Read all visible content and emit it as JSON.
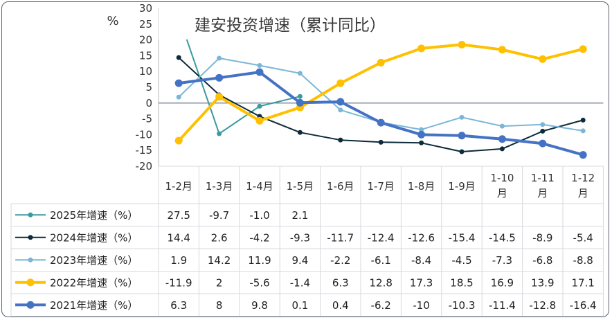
{
  "chart_data": {
    "type": "line",
    "title": "建安投资增速（累计同比）",
    "ylabel": "%",
    "ylim": [
      -20,
      30
    ],
    "yticks": [
      30,
      25,
      20,
      15,
      10,
      5,
      0,
      -5,
      -10,
      -15,
      -20
    ],
    "ytick_labels": [
      "30",
      "25",
      "20",
      "15",
      "10",
      "5",
      "0",
      "-5",
      "-10",
      "-15",
      "-20"
    ],
    "grid": false,
    "categories": [
      "1-2月",
      "1-3月",
      "1-4月",
      "1-5月",
      "1-6月",
      "1-7月",
      "1-8月",
      "1-9月",
      "1-10月",
      "1-11月",
      "1-12月"
    ],
    "category_lines": [
      [
        "1-2月"
      ],
      [
        "1-3月"
      ],
      [
        "1-4月"
      ],
      [
        "1-5月"
      ],
      [
        "1-6月"
      ],
      [
        "1-7月"
      ],
      [
        "1-8月"
      ],
      [
        "1-9月"
      ],
      [
        "1-10",
        "月"
      ],
      [
        "1-11",
        "月"
      ],
      [
        "1-12",
        "月"
      ]
    ],
    "series": [
      {
        "name": "2025年增速（%）",
        "color": "#3a9a9f",
        "width": 2,
        "dot": 3.5,
        "values": [
          27.5,
          -9.7,
          -1.0,
          2.1,
          null,
          null,
          null,
          null,
          null,
          null,
          null
        ],
        "labels": [
          "27.5",
          "-9.7",
          "-1.0",
          "2.1",
          "",
          "",
          "",
          "",
          "",
          "",
          ""
        ]
      },
      {
        "name": "2024年增速（%）",
        "color": "#0d2b3a",
        "width": 2,
        "dot": 3.5,
        "values": [
          14.4,
          2.6,
          -4.2,
          -9.3,
          -11.7,
          -12.4,
          -12.6,
          -15.4,
          -14.5,
          -8.9,
          -5.4
        ],
        "labels": [
          "14.4",
          "2.6",
          "-4.2",
          "-9.3",
          "-11.7",
          "-12.4",
          "-12.6",
          "-15.4",
          "-14.5",
          "-8.9",
          "-5.4"
        ]
      },
      {
        "name": "2023年增速（%）",
        "color": "#7bb6d8",
        "width": 2,
        "dot": 3.5,
        "values": [
          1.9,
          14.2,
          11.9,
          9.4,
          -2.2,
          -6.1,
          -8.4,
          -4.5,
          -7.3,
          -6.8,
          -8.8
        ],
        "labels": [
          "1.9",
          "14.2",
          "11.9",
          "9.4",
          "-2.2",
          "-6.1",
          "-8.4",
          "-4.5",
          "-7.3",
          "-6.8",
          "-8.8"
        ]
      },
      {
        "name": "2022年增速（%）",
        "color": "#ffc000",
        "width": 4,
        "dot": 5.5,
        "values": [
          -11.9,
          2,
          -5.6,
          -1.4,
          6.3,
          12.8,
          17.3,
          18.5,
          16.9,
          13.9,
          17.1
        ],
        "labels": [
          "-11.9",
          "2",
          "-5.6",
          "-1.4",
          "6.3",
          "12.8",
          "17.3",
          "18.5",
          "16.9",
          "13.9",
          "17.1"
        ]
      },
      {
        "name": "2021年增速（%）",
        "color": "#4472c4",
        "width": 4,
        "dot": 5.5,
        "values": [
          6.3,
          8,
          9.8,
          0.1,
          0.4,
          -6.2,
          -10,
          -10.3,
          -11.4,
          -12.8,
          -16.4
        ],
        "labels": [
          "6.3",
          "8",
          "9.8",
          "0.1",
          "0.4",
          "-6.2",
          "-10",
          "-10.3",
          "-11.4",
          "-12.8",
          "-16.4"
        ]
      }
    ]
  }
}
